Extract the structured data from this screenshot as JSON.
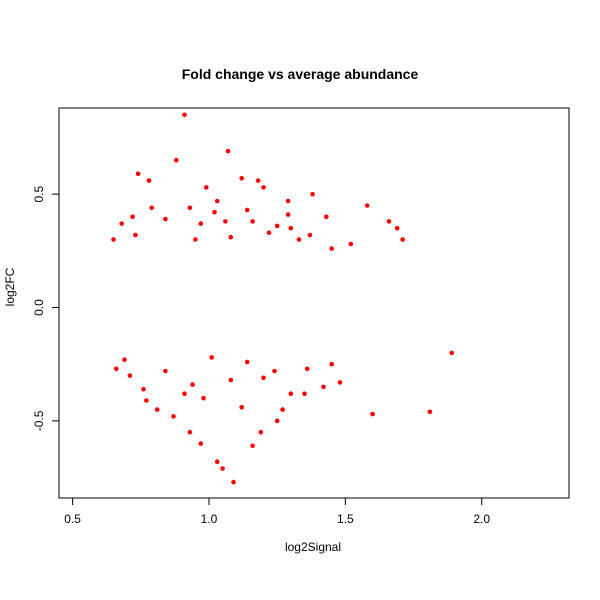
{
  "chart_data": {
    "type": "scatter",
    "title": "Fold change vs average abundance",
    "xlabel": "log2Signal",
    "ylabel": "log2FC",
    "xlim": [
      0.45,
      2.32
    ],
    "ylim": [
      -0.84,
      0.88
    ],
    "x_ticks": [
      0.5,
      1.0,
      1.5,
      2.0
    ],
    "x_tick_labels": [
      "0.5",
      "1.0",
      "1.5",
      "2.0"
    ],
    "y_ticks": [
      -0.5,
      0.0,
      0.5
    ],
    "y_tick_labels": [
      "-0.5",
      "0.0",
      "0.5"
    ],
    "grid": false,
    "legend": "none",
    "colors": {
      "low": "#000000",
      "mid": "#0000ff",
      "high": "#ff0000"
    },
    "series": [
      {
        "color": "#ff0000",
        "points": [
          [
            0.91,
            0.85
          ],
          [
            0.74,
            0.59
          ],
          [
            0.78,
            0.56
          ],
          [
            0.88,
            0.65
          ],
          [
            1.07,
            0.69
          ],
          [
            1.12,
            0.57
          ],
          [
            1.18,
            0.56
          ],
          [
            1.2,
            0.53
          ],
          [
            1.29,
            0.47
          ],
          [
            1.38,
            0.5
          ],
          [
            1.58,
            0.45
          ],
          [
            1.66,
            0.38
          ],
          [
            1.69,
            0.35
          ],
          [
            1.71,
            0.3
          ],
          [
            0.79,
            0.44
          ],
          [
            0.93,
            0.44
          ],
          [
            1.02,
            0.42
          ],
          [
            1.14,
            0.43
          ],
          [
            1.25,
            0.36
          ],
          [
            1.43,
            0.4
          ],
          [
            1.3,
            0.35
          ],
          [
            1.37,
            0.32
          ],
          [
            1.52,
            0.28
          ],
          [
            1.45,
            0.26
          ],
          [
            0.72,
            0.4
          ],
          [
            0.68,
            0.37
          ],
          [
            0.84,
            0.39
          ],
          [
            0.97,
            0.37
          ],
          [
            1.06,
            0.38
          ],
          [
            1.16,
            0.38
          ],
          [
            1.22,
            0.33
          ],
          [
            0.99,
            0.53
          ],
          [
            1.08,
            0.31
          ],
          [
            0.95,
            0.3
          ],
          [
            1.33,
            0.3
          ],
          [
            0.73,
            0.32
          ],
          [
            0.65,
            0.3
          ],
          [
            1.03,
            0.47
          ],
          [
            1.29,
            0.41
          ],
          [
            0.93,
            -0.55
          ],
          [
            0.97,
            -0.6
          ],
          [
            1.03,
            -0.68
          ],
          [
            1.05,
            -0.71
          ],
          [
            1.09,
            -0.77
          ],
          [
            1.16,
            -0.61
          ],
          [
            1.19,
            -0.55
          ],
          [
            1.25,
            -0.5
          ],
          [
            1.27,
            -0.45
          ],
          [
            1.35,
            -0.38
          ],
          [
            1.48,
            -0.33
          ],
          [
            1.6,
            -0.47
          ],
          [
            1.81,
            -0.46
          ],
          [
            1.89,
            -0.2
          ],
          [
            0.71,
            -0.3
          ],
          [
            0.66,
            -0.27
          ],
          [
            0.76,
            -0.36
          ],
          [
            0.81,
            -0.45
          ],
          [
            0.87,
            -0.48
          ],
          [
            0.91,
            -0.38
          ],
          [
            0.98,
            -0.4
          ],
          [
            1.08,
            -0.32
          ],
          [
            1.12,
            -0.44
          ],
          [
            1.2,
            -0.31
          ],
          [
            1.3,
            -0.38
          ],
          [
            1.42,
            -0.35
          ],
          [
            0.84,
            -0.28
          ],
          [
            0.77,
            -0.41
          ],
          [
            1.01,
            -0.22
          ],
          [
            1.14,
            -0.24
          ],
          [
            0.94,
            -0.34
          ],
          [
            1.24,
            -0.28
          ],
          [
            0.69,
            -0.23
          ],
          [
            1.36,
            -0.27
          ],
          [
            1.45,
            -0.25
          ]
        ]
      }
    ]
  }
}
